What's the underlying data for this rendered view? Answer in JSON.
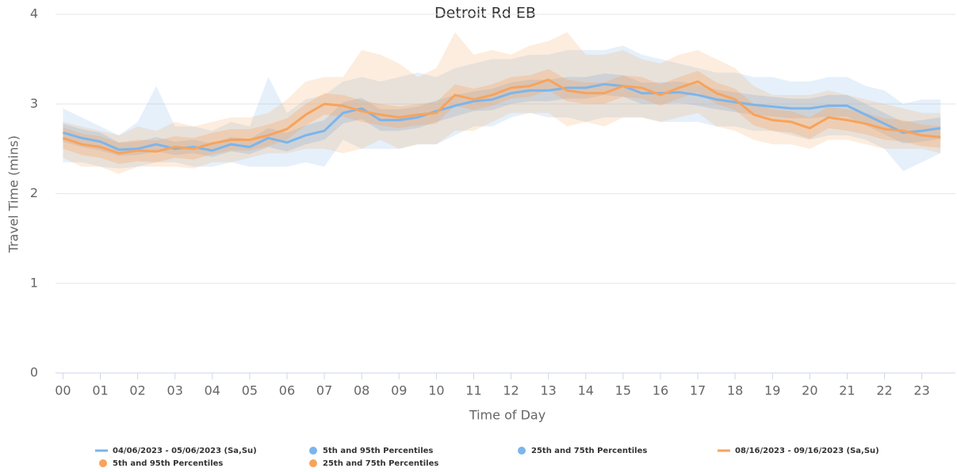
{
  "chart_data": {
    "type": "line",
    "title": "Detroit Rd EB",
    "x_label": "Time of Day",
    "y_label": "Travel Time (mins)",
    "x": [
      0,
      0.5,
      1,
      1.5,
      2,
      2.5,
      3,
      3.5,
      4,
      4.5,
      5,
      5.5,
      6,
      6.5,
      7,
      7.5,
      8,
      8.5,
      9,
      9.5,
      10,
      10.5,
      11,
      11.5,
      12,
      12.5,
      13,
      13.5,
      14,
      14.5,
      15,
      15.5,
      16,
      16.5,
      17,
      17.5,
      18,
      18.5,
      19,
      19.5,
      20,
      20.5,
      21,
      21.5,
      22,
      22.5,
      23,
      23.5
    ],
    "xlim": [
      -0.2,
      23.9
    ],
    "xticks": [
      {
        "value": 0,
        "label": "00"
      },
      {
        "value": 1,
        "label": "01"
      },
      {
        "value": 2,
        "label": "02"
      },
      {
        "value": 3,
        "label": "03"
      },
      {
        "value": 4,
        "label": "04"
      },
      {
        "value": 5,
        "label": "05"
      },
      {
        "value": 6,
        "label": "06"
      },
      {
        "value": 7,
        "label": "07"
      },
      {
        "value": 8,
        "label": "08"
      },
      {
        "value": 9,
        "label": "09"
      },
      10,
      11,
      12,
      13,
      14,
      15,
      16,
      17,
      18,
      19,
      20,
      21,
      22,
      23
    ],
    "ylim": [
      0,
      4
    ],
    "yticks": [
      0,
      1,
      2,
      3,
      4
    ],
    "grid": true,
    "series": [
      {
        "name": "04/06/2023 - 05/06/2023 (Sa,Su)",
        "color": "#7cb5ec",
        "values": [
          2.68,
          2.62,
          2.58,
          2.49,
          2.5,
          2.55,
          2.5,
          2.52,
          2.48,
          2.55,
          2.52,
          2.62,
          2.57,
          2.65,
          2.7,
          2.9,
          2.95,
          2.82,
          2.82,
          2.85,
          2.92,
          2.98,
          3.03,
          3.05,
          3.12,
          3.15,
          3.15,
          3.18,
          3.18,
          3.22,
          3.2,
          3.12,
          3.12,
          3.13,
          3.1,
          3.05,
          3.02,
          2.99,
          2.97,
          2.95,
          2.95,
          2.98,
          2.98,
          2.88,
          2.78,
          2.68,
          2.7,
          2.73
        ],
        "bands": [
          {
            "name": "5th and 95th Percentiles",
            "low": [
              2.35,
              2.35,
              2.3,
              2.28,
              2.3,
              2.35,
              2.35,
              2.3,
              2.3,
              2.35,
              2.3,
              2.3,
              2.3,
              2.35,
              2.3,
              2.6,
              2.5,
              2.5,
              2.5,
              2.55,
              2.55,
              2.65,
              2.75,
              2.75,
              2.85,
              2.9,
              2.85,
              2.85,
              2.8,
              2.85,
              2.85,
              2.85,
              2.8,
              2.8,
              2.8,
              2.75,
              2.75,
              2.7,
              2.7,
              2.65,
              2.6,
              2.65,
              2.65,
              2.6,
              2.5,
              2.25,
              2.35,
              2.45
            ],
            "high": [
              2.95,
              2.85,
              2.75,
              2.65,
              2.8,
              3.2,
              2.75,
              2.75,
              2.7,
              2.8,
              2.75,
              3.3,
              2.9,
              3.05,
              3.1,
              3.25,
              3.3,
              3.25,
              3.3,
              3.35,
              3.3,
              3.4,
              3.45,
              3.5,
              3.5,
              3.55,
              3.55,
              3.6,
              3.6,
              3.6,
              3.65,
              3.55,
              3.5,
              3.45,
              3.4,
              3.35,
              3.35,
              3.3,
              3.3,
              3.25,
              3.25,
              3.3,
              3.3,
              3.2,
              3.15,
              3.0,
              3.05,
              3.05
            ]
          },
          {
            "name": "25th and 75th Percentiles",
            "low": [
              2.58,
              2.52,
              2.48,
              2.42,
              2.43,
              2.47,
              2.43,
              2.45,
              2.41,
              2.47,
              2.44,
              2.52,
              2.47,
              2.55,
              2.6,
              2.78,
              2.83,
              2.7,
              2.7,
              2.73,
              2.8,
              2.86,
              2.92,
              2.93,
              3.0,
              3.03,
              3.03,
              3.06,
              3.06,
              3.1,
              3.08,
              3.0,
              3.0,
              3.01,
              2.98,
              2.94,
              2.91,
              2.88,
              2.86,
              2.84,
              2.84,
              2.86,
              2.86,
              2.76,
              2.66,
              2.56,
              2.58,
              2.61
            ],
            "high": [
              2.78,
              2.72,
              2.68,
              2.57,
              2.58,
              2.63,
              2.58,
              2.6,
              2.56,
              2.63,
              2.61,
              2.73,
              2.68,
              2.76,
              2.82,
              3.02,
              3.07,
              2.94,
              2.94,
              2.97,
              3.04,
              3.1,
              3.14,
              3.17,
              3.24,
              3.27,
              3.27,
              3.3,
              3.3,
              3.34,
              3.32,
              3.24,
              3.24,
              3.25,
              3.22,
              3.16,
              3.13,
              3.1,
              3.08,
              3.06,
              3.06,
              3.1,
              3.1,
              3.0,
              2.9,
              2.8,
              2.82,
              2.85
            ]
          }
        ]
      },
      {
        "name": "08/16/2023 - 09/16/2023 (Sa,Su)",
        "color": "#f7a35c",
        "values": [
          2.62,
          2.55,
          2.52,
          2.45,
          2.48,
          2.47,
          2.52,
          2.5,
          2.56,
          2.6,
          2.6,
          2.65,
          2.72,
          2.88,
          3.0,
          2.98,
          2.92,
          2.88,
          2.85,
          2.88,
          2.9,
          3.1,
          3.05,
          3.1,
          3.18,
          3.2,
          3.27,
          3.15,
          3.12,
          3.12,
          3.2,
          3.18,
          3.1,
          3.18,
          3.25,
          3.12,
          3.05,
          2.88,
          2.82,
          2.8,
          2.73,
          2.85,
          2.82,
          2.78,
          2.72,
          2.7,
          2.65,
          2.63
        ],
        "bands": [
          {
            "name": "5th and 95th Percentiles",
            "low": [
              2.4,
              2.3,
              2.3,
              2.22,
              2.3,
              2.3,
              2.3,
              2.28,
              2.35,
              2.35,
              2.4,
              2.45,
              2.45,
              2.5,
              2.5,
              2.45,
              2.5,
              2.6,
              2.5,
              2.55,
              2.55,
              2.7,
              2.7,
              2.8,
              2.9,
              2.9,
              2.9,
              2.75,
              2.8,
              2.75,
              2.85,
              2.85,
              2.8,
              2.85,
              2.9,
              2.75,
              2.7,
              2.6,
              2.55,
              2.55,
              2.5,
              2.6,
              2.6,
              2.55,
              2.5,
              2.5,
              2.5,
              2.45
            ],
            "high": [
              2.8,
              2.75,
              2.7,
              2.65,
              2.75,
              2.7,
              2.8,
              2.75,
              2.8,
              2.85,
              2.85,
              2.9,
              3.05,
              3.25,
              3.3,
              3.3,
              3.6,
              3.55,
              3.45,
              3.3,
              3.4,
              3.8,
              3.55,
              3.6,
              3.55,
              3.65,
              3.7,
              3.8,
              3.55,
              3.55,
              3.6,
              3.5,
              3.45,
              3.55,
              3.6,
              3.5,
              3.4,
              3.2,
              3.1,
              3.1,
              3.1,
              3.15,
              3.1,
              3.05,
              3.0,
              2.95,
              2.9,
              2.9
            ]
          },
          {
            "name": "25th and 75th Percentiles",
            "low": [
              2.5,
              2.43,
              2.4,
              2.33,
              2.36,
              2.35,
              2.4,
              2.38,
              2.44,
              2.48,
              2.48,
              2.53,
              2.6,
              2.76,
              2.88,
              2.86,
              2.8,
              2.76,
              2.73,
              2.76,
              2.78,
              2.98,
              2.93,
              2.98,
              3.06,
              3.08,
              3.15,
              3.03,
              3.0,
              3.0,
              3.08,
              3.06,
              2.98,
              3.06,
              3.13,
              3.0,
              2.93,
              2.76,
              2.7,
              2.68,
              2.61,
              2.73,
              2.7,
              2.66,
              2.6,
              2.58,
              2.53,
              2.51
            ],
            "high": [
              2.74,
              2.67,
              2.64,
              2.57,
              2.6,
              2.59,
              2.64,
              2.62,
              2.68,
              2.72,
              2.72,
              2.77,
              2.84,
              3.0,
              3.12,
              3.1,
              3.04,
              3.0,
              2.97,
              3.0,
              3.02,
              3.22,
              3.17,
              3.22,
              3.3,
              3.32,
              3.39,
              3.27,
              3.24,
              3.24,
              3.32,
              3.3,
              3.22,
              3.3,
              3.37,
              3.24,
              3.17,
              3.0,
              2.94,
              2.92,
              2.85,
              2.97,
              2.94,
              2.9,
              2.84,
              2.82,
              2.77,
              2.75
            ]
          }
        ]
      }
    ]
  }
}
